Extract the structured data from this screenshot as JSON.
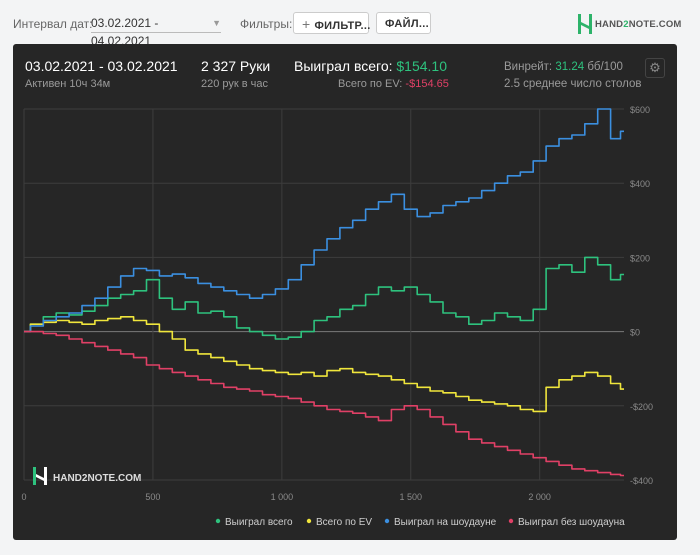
{
  "toolbar": {
    "interval_label": "Интервал дат:",
    "date_range": "03.02.2021 - 04.02.2021",
    "filters_label": "Фильтры:",
    "filter_button": "ФИЛЬТР...",
    "file_button": "ФАЙЛ..."
  },
  "logo": {
    "part1": "HAND",
    "part2": "2",
    "part3": "NOTE.COM"
  },
  "stats": {
    "range": "03.02.2021 - 03.02.2021",
    "active": "Активен 10ч 34м",
    "hands": "2 327 Руки",
    "hands_per_hour": "220 рук в час",
    "won_total_label": "Выиграл всего:",
    "won_total_value": "$154.10",
    "ev_label": "Всего по EV:",
    "ev_value": "-$154.65",
    "winrate_label": "Винрейт:",
    "winrate_value": "31.24",
    "winrate_unit": "бб/100",
    "avg_tables": "2.5 среднее число столов"
  },
  "chart_watermark": "HAND2NOTE.COM",
  "colors": {
    "green": "#2ec27e",
    "yellow": "#f0e63c",
    "blue": "#3b8fe0",
    "red": "#e04066",
    "panel": "#262626"
  },
  "chart_data": {
    "type": "line",
    "xlim": [
      0,
      2327
    ],
    "ylim": [
      -400,
      600
    ],
    "xticks": [
      0,
      500,
      1000,
      1500,
      2000
    ],
    "xtick_labels": [
      "0",
      "500",
      "1 000",
      "1 500",
      "2 000"
    ],
    "yticks": [
      600,
      400,
      200,
      0,
      -200,
      -400
    ],
    "ytick_labels": [
      "$600",
      "$400",
      "$200",
      "$0",
      "-$200",
      "-$400"
    ],
    "grid": true,
    "legend": "bottom-right",
    "x": [
      0,
      50,
      100,
      150,
      200,
      250,
      300,
      350,
      400,
      450,
      500,
      550,
      600,
      650,
      700,
      750,
      800,
      850,
      900,
      950,
      1000,
      1050,
      1100,
      1150,
      1200,
      1250,
      1300,
      1350,
      1400,
      1450,
      1500,
      1550,
      1600,
      1650,
      1700,
      1750,
      1800,
      1850,
      1900,
      1950,
      2000,
      2050,
      2100,
      2150,
      2200,
      2250,
      2300,
      2327
    ],
    "series": [
      {
        "name": "Выиграл всего",
        "color": "#2ec27e",
        "values": [
          0,
          20,
          40,
          50,
          45,
          55,
          70,
          90,
          100,
          110,
          140,
          90,
          60,
          80,
          50,
          55,
          40,
          10,
          0,
          -10,
          -20,
          -15,
          0,
          30,
          40,
          60,
          70,
          100,
          120,
          110,
          120,
          100,
          80,
          50,
          40,
          20,
          30,
          50,
          40,
          30,
          60,
          170,
          180,
          160,
          200,
          180,
          140,
          154
        ]
      },
      {
        "name": "Всего по EV",
        "color": "#f0e63c",
        "values": [
          0,
          20,
          25,
          30,
          25,
          20,
          30,
          35,
          40,
          30,
          20,
          0,
          -20,
          -50,
          -60,
          -70,
          -80,
          -90,
          -100,
          -105,
          -110,
          -115,
          -110,
          -120,
          -105,
          -100,
          -110,
          -115,
          -120,
          -130,
          -140,
          -150,
          -160,
          -165,
          -175,
          -185,
          -190,
          -195,
          -200,
          -210,
          -215,
          -150,
          -130,
          -120,
          -110,
          -120,
          -140,
          -155
        ]
      },
      {
        "name": "Выиграл на шоудауне",
        "color": "#3b8fe0",
        "values": [
          0,
          15,
          30,
          40,
          50,
          70,
          90,
          120,
          150,
          170,
          165,
          150,
          155,
          145,
          130,
          120,
          110,
          100,
          90,
          100,
          115,
          140,
          180,
          220,
          250,
          280,
          300,
          330,
          350,
          370,
          330,
          310,
          320,
          340,
          350,
          360,
          380,
          400,
          420,
          430,
          460,
          500,
          520,
          530,
          560,
          600,
          520,
          540
        ]
      },
      {
        "name": "Выиграл без шоудауна",
        "color": "#e04066",
        "values": [
          0,
          0,
          -5,
          -10,
          -20,
          -30,
          -40,
          -50,
          -60,
          -70,
          -90,
          -100,
          -110,
          -120,
          -130,
          -140,
          -150,
          -155,
          -160,
          -170,
          -175,
          -180,
          -190,
          -200,
          -210,
          -215,
          -220,
          -230,
          -240,
          -210,
          -200,
          -210,
          -230,
          -250,
          -270,
          -290,
          -300,
          -310,
          -320,
          -330,
          -340,
          -350,
          -360,
          -370,
          -375,
          -380,
          -385,
          -388
        ]
      }
    ]
  }
}
